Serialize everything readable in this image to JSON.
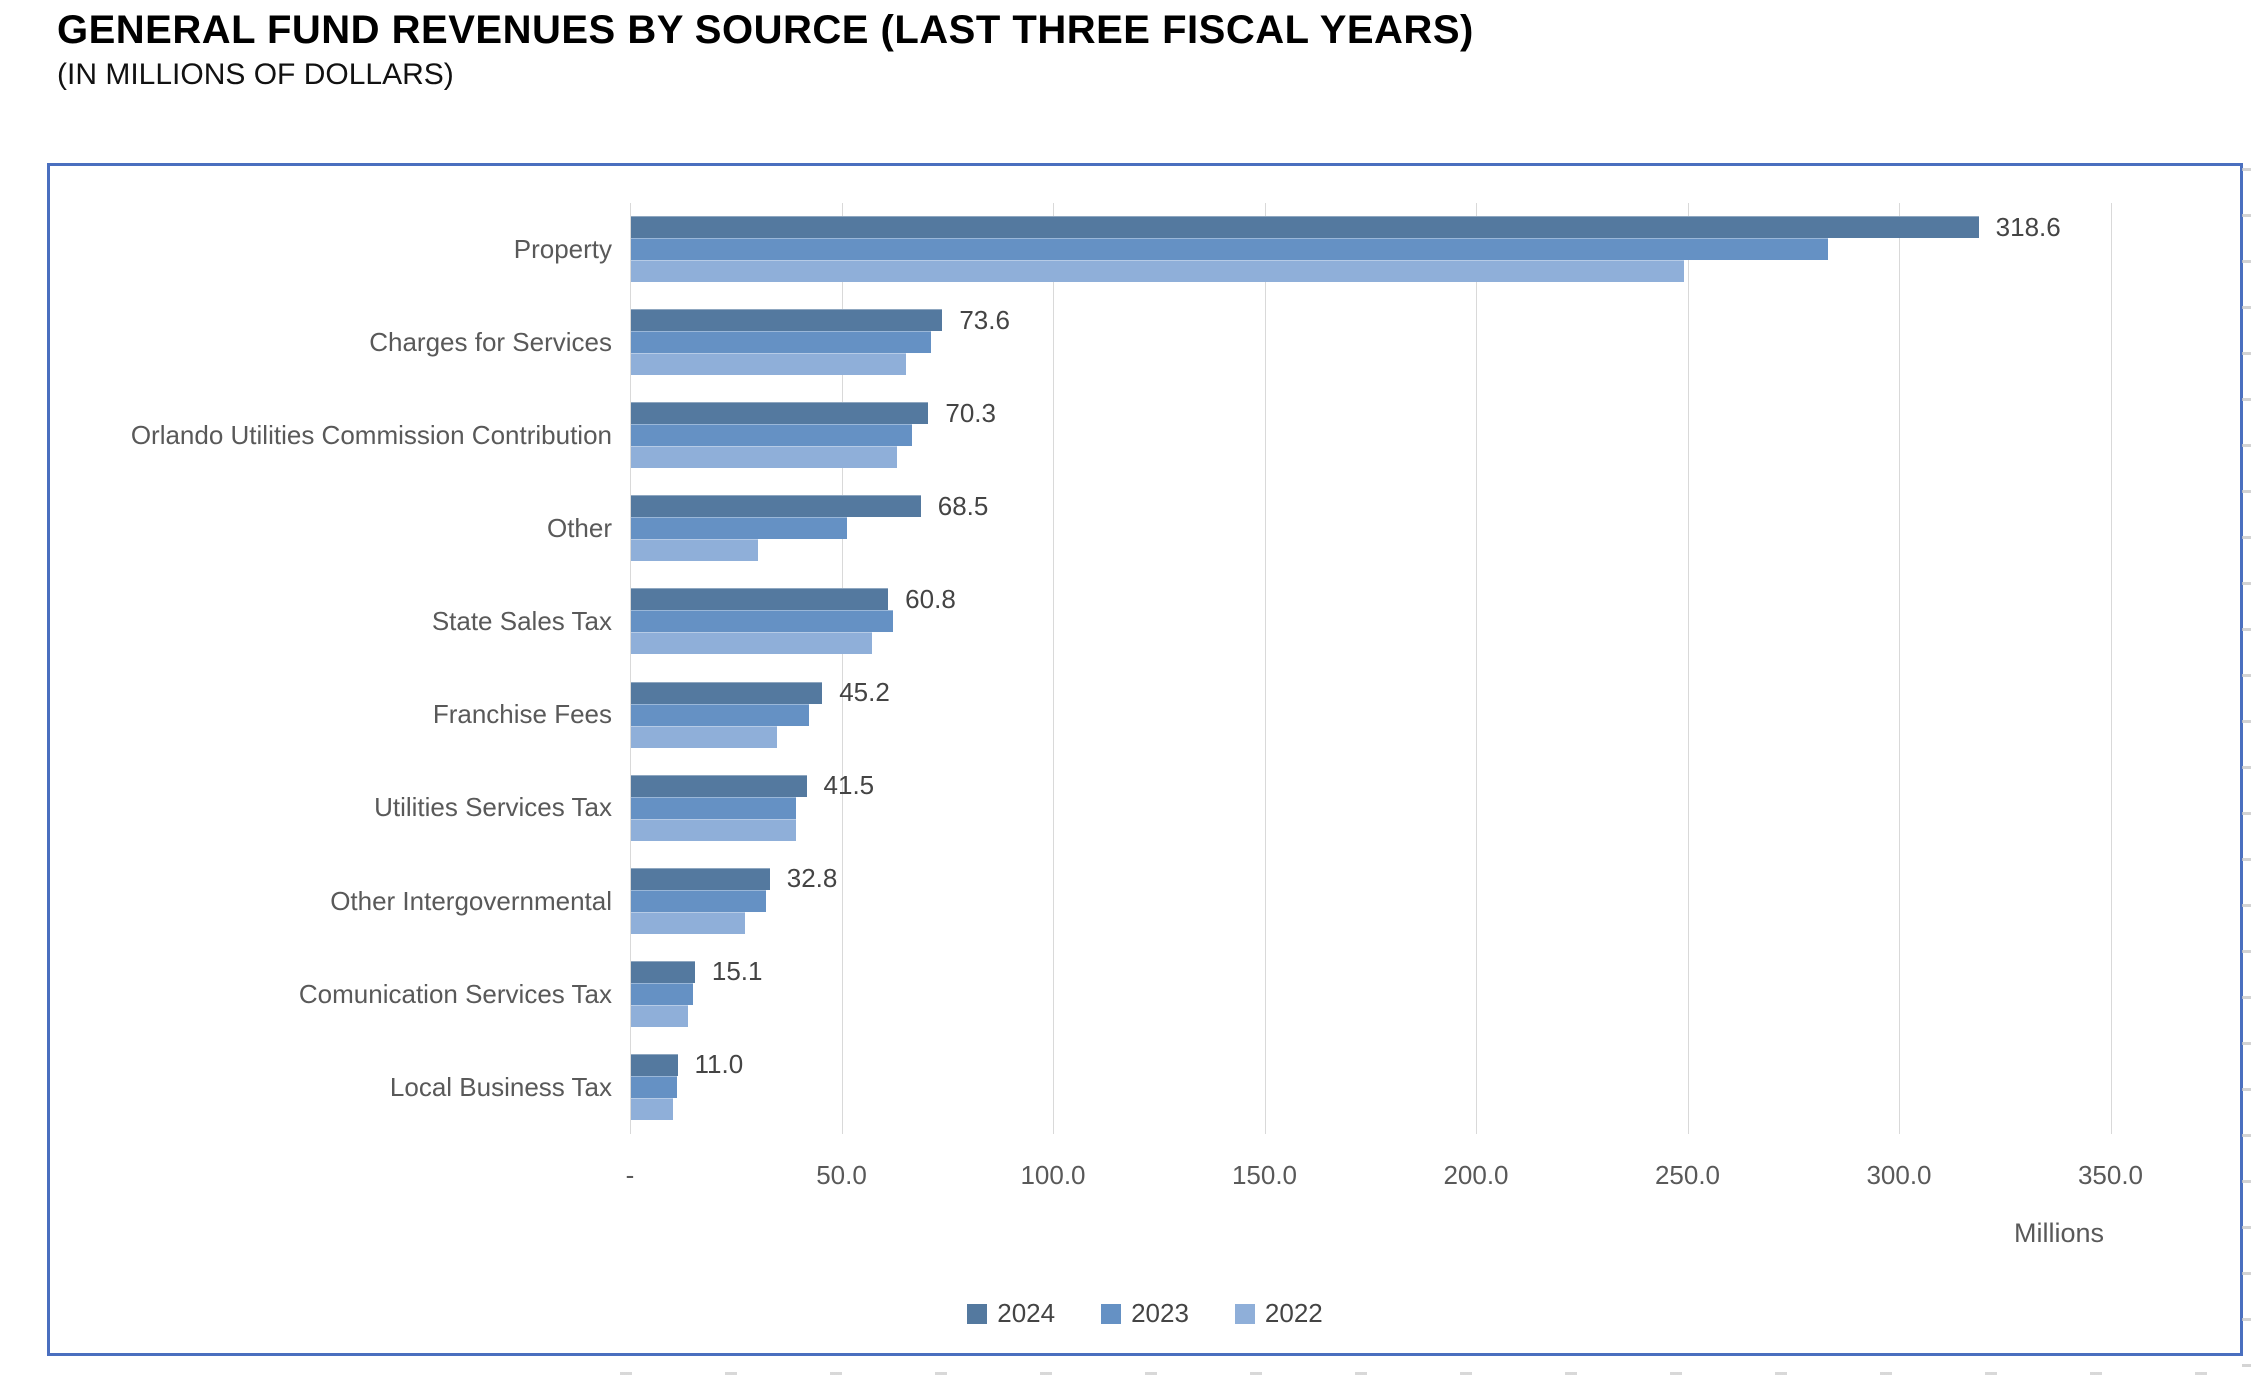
{
  "header": {
    "title": "GENERAL FUND REVENUES BY SOURCE (LAST THREE FISCAL YEARS)",
    "subtitle": "(IN MILLIONS OF DOLLARS)"
  },
  "chart_data": {
    "type": "bar",
    "orientation": "horizontal",
    "title": "GENERAL FUND REVENUES BY SOURCE (LAST THREE FISCAL YEARS)",
    "subtitle": "(IN MILLIONS OF DOLLARS)",
    "categories": [
      "Property",
      "Charges for Services",
      "Orlando Utilities Commission Contribution",
      "Other",
      "State Sales Tax",
      "Franchise Fees",
      "Utilities Services Tax",
      "Other Intergovernmental",
      "Comunication Services Tax",
      "Local Business Tax"
    ],
    "series": [
      {
        "name": "2024",
        "color": "#54799f",
        "labels_visible": true,
        "values": [
          318.6,
          73.6,
          70.3,
          68.5,
          60.8,
          45.2,
          41.5,
          32.8,
          15.1,
          11.0
        ]
      },
      {
        "name": "2023",
        "color": "#6591c4",
        "labels_visible": false,
        "values": [
          283,
          71,
          66.5,
          51,
          62,
          42,
          39,
          32,
          14.7,
          10.8
        ]
      },
      {
        "name": "2022",
        "color": "#8fafd9",
        "labels_visible": false,
        "values": [
          249,
          65,
          63,
          30,
          57,
          34.5,
          39,
          27,
          13.5,
          10.0
        ]
      }
    ],
    "data_labels": [
      "318.6",
      "73.6",
      "70.3",
      "68.5",
      "60.8",
      "45.2",
      "41.5",
      "32.8",
      "15.1",
      "11.0"
    ],
    "x_ticks": [
      {
        "value": 0,
        "label": "-"
      },
      {
        "value": 50,
        "label": "50.0"
      },
      {
        "value": 100,
        "label": "100.0"
      },
      {
        "value": 150,
        "label": "150.0"
      },
      {
        "value": 200,
        "label": "200.0"
      },
      {
        "value": 250,
        "label": "250.0"
      },
      {
        "value": 300,
        "label": "300.0"
      },
      {
        "value": 350,
        "label": "350.0"
      }
    ],
    "xlabel": "Millions",
    "ylabel": "",
    "xlim": [
      0,
      350
    ],
    "grid": true,
    "legend": {
      "position": "bottom",
      "entries": [
        "2024",
        "2023",
        "2022"
      ]
    },
    "colors": {
      "gridline": "#d9d9d9",
      "axis_text": "#595959",
      "data_label_text": "#444444",
      "frame_border": "#4a6fbf"
    }
  }
}
